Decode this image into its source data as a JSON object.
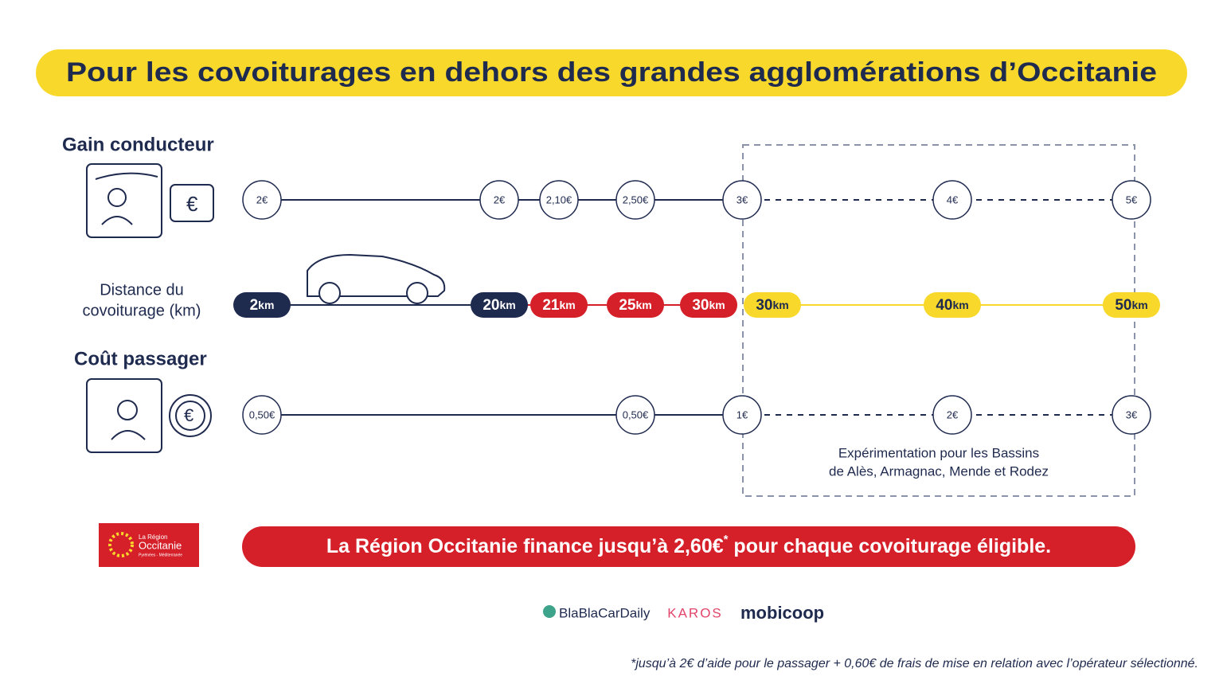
{
  "header": {
    "title": "Pour les covoiturages en dehors des grandes agglomérations d’Occitanie"
  },
  "driver": {
    "label": "Gain conducteur",
    "nodes": [
      "2€",
      "2€",
      "2,10€",
      "2,50€",
      "3€",
      "4€",
      "5€"
    ]
  },
  "distance": {
    "label": [
      "Distance du",
      "covoiturage (km)"
    ],
    "nodes": [
      [
        "2",
        "km"
      ],
      [
        "20",
        "km"
      ],
      [
        "21",
        "km"
      ],
      [
        "25",
        "km"
      ],
      [
        "30",
        "km"
      ],
      [
        "30",
        "km"
      ],
      [
        "40",
        "km"
      ],
      [
        "50",
        "km"
      ]
    ]
  },
  "passenger": {
    "label": "Coût passager",
    "nodes": [
      "0,50€",
      "0,50€",
      "1€",
      "2€",
      "3€"
    ]
  },
  "experiment": {
    "lines": [
      "Expérimentation pour les Bassins",
      "de Alès, Armagnac, Mende et Rodez"
    ]
  },
  "logo": {
    "lines": [
      "La Région",
      "Occitanie",
      "Pyrénées - Méditerranée"
    ]
  },
  "banner": {
    "parts": [
      "La Région Occitanie finance jusqu’à 2,60€",
      "*",
      " pour chaque covoiturage éligible."
    ]
  },
  "partners": [
    "BlaBlaCarDaily",
    "KAROS",
    "mobicoop"
  ],
  "footnote": "*jusqu’à 2€ d’aide pour le passager + 0,60€ de frais de mise en relation avec l’opérateur sélectionné."
}
